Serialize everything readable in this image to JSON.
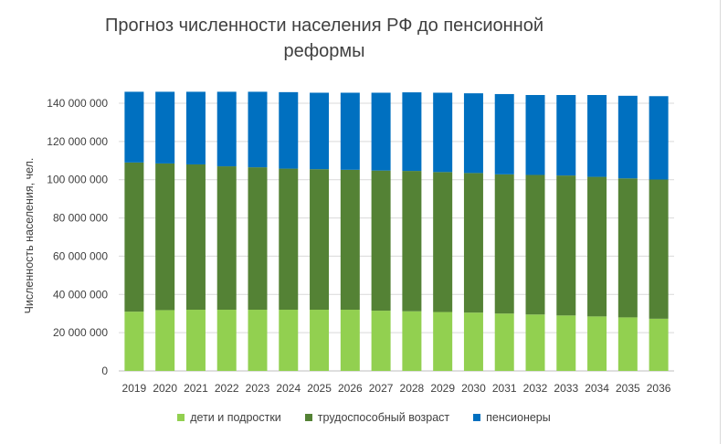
{
  "chart_data": {
    "type": "bar",
    "stacked": true,
    "title_line1": "Прогноз численности населения РФ до пенсионной",
    "title_line2": "реформы",
    "ylabel": "Численность населения, чел.",
    "xlabel": "",
    "ylim": [
      0,
      140000000
    ],
    "y_ticks": [
      "0",
      "20 000 000",
      "40 000 000",
      "60 000 000",
      "80 000 000",
      "100 000 000",
      "120 000 000",
      "140 000 000"
    ],
    "y_tick_values": [
      0,
      20000000,
      40000000,
      60000000,
      80000000,
      100000000,
      120000000,
      140000000
    ],
    "grid": true,
    "legend_position": "bottom",
    "categories": [
      "2019",
      "2020",
      "2021",
      "2022",
      "2023",
      "2024",
      "2025",
      "2026",
      "2027",
      "2028",
      "2029",
      "2030",
      "2031",
      "2032",
      "2033",
      "2034",
      "2035",
      "2036"
    ],
    "series": [
      {
        "name": "дети и подростки",
        "color": "#92d050",
        "values": [
          31000000,
          31800000,
          32000000,
          32000000,
          32000000,
          32000000,
          32000000,
          32000000,
          31500000,
          31200000,
          30800000,
          30500000,
          30000000,
          29500000,
          29000000,
          28500000,
          28000000,
          27300000
        ]
      },
      {
        "name": "трудоспособный возраст",
        "color": "#548235",
        "values": [
          78000000,
          76700000,
          76000000,
          75000000,
          74500000,
          73800000,
          73500000,
          73200000,
          73300000,
          73400000,
          73200000,
          73000000,
          72800000,
          73000000,
          73200000,
          73000000,
          72700000,
          72800000
        ]
      },
      {
        "name": "пенсионеры",
        "color": "#0070c0",
        "values": [
          37000000,
          37500000,
          38000000,
          39000000,
          39500000,
          40000000,
          40000000,
          40300000,
          40700000,
          41100000,
          41500000,
          41700000,
          42000000,
          41800000,
          42100000,
          42800000,
          43200000,
          43600000
        ]
      }
    ]
  }
}
